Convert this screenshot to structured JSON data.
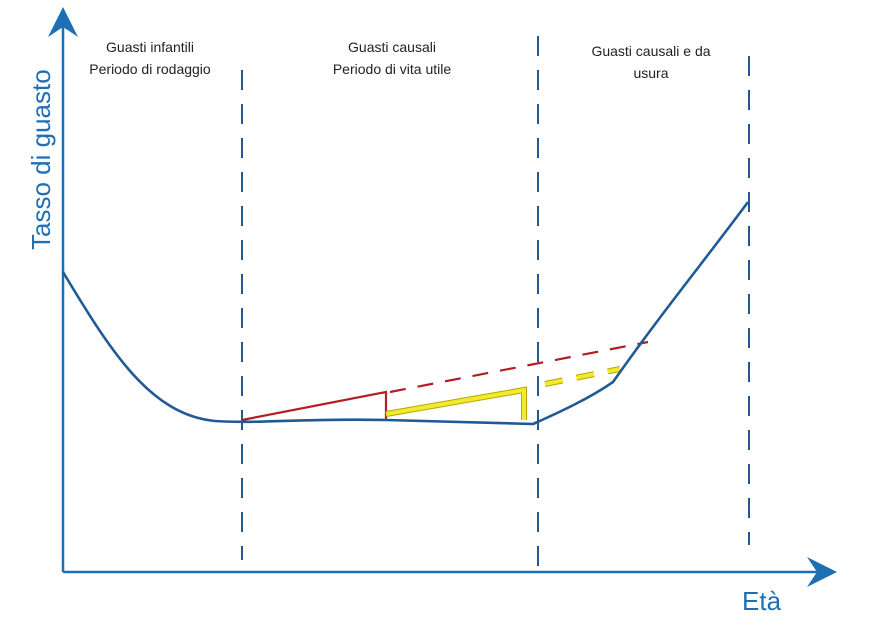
{
  "axes": {
    "y_label": "Tasso di guasto",
    "x_label": "Età"
  },
  "regions": [
    {
      "line1": "Guasti infantili",
      "line2": "Periodo di rodaggio"
    },
    {
      "line1": "Guasti causali",
      "line2": "Periodo di vita utile"
    },
    {
      "line1": "Guasti causali e da",
      "line2": "usura"
    }
  ],
  "colors": {
    "axis": "#1f6fb5",
    "curve": "#1f5a94",
    "red": "#b21e24",
    "yellow": "#f2ea2e",
    "yellow_outline": "#b5a800"
  }
}
